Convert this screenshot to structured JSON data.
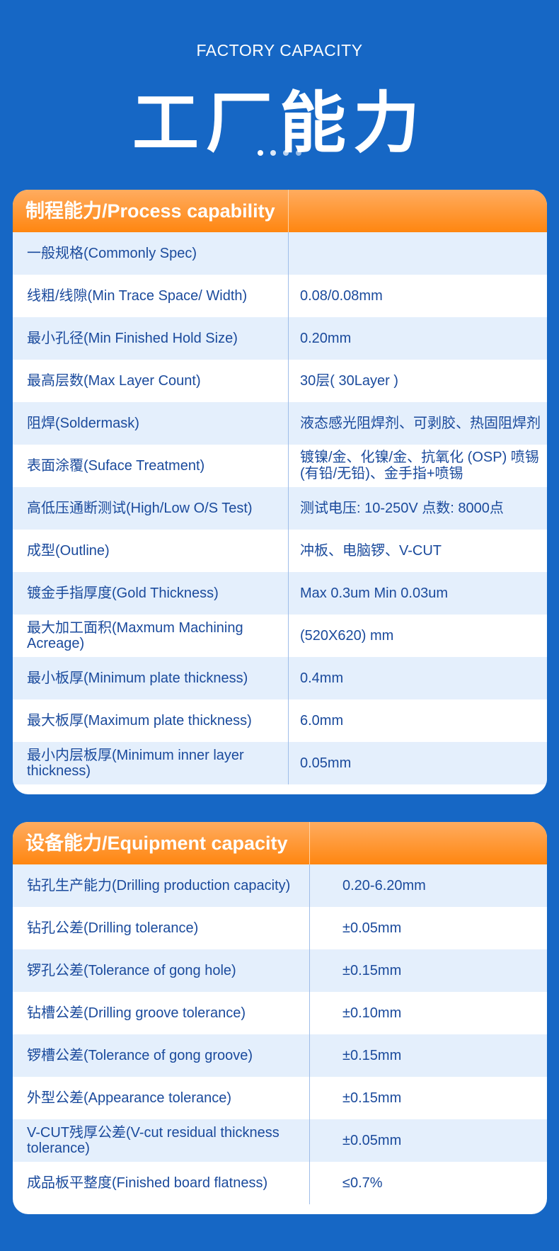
{
  "header": {
    "subtitle": "FACTORY CAPACITY",
    "title": "工厂能力"
  },
  "colors": {
    "background": "#1667c5",
    "header_orange": "#ff8610",
    "text": "#1a4a9c",
    "row_alt": "#e4effc"
  },
  "process": {
    "title": "制程能力/Process capability",
    "rows": [
      [
        "一般规格(Commonly Spec)",
        ""
      ],
      [
        "线粗/线隙(Min Trace Space/ Width)",
        "0.08/0.08mm"
      ],
      [
        "最小孔径(Min Finished Hold Size)",
        "0.20mm"
      ],
      [
        "最高层数(Max Layer Count)",
        "30层( 30Layer )"
      ],
      [
        "阻焊(Soldermask)",
        "液态感光阻焊剂、可剥胶、热固阻焊剂"
      ],
      [
        "表面涂覆(Suface Treatment)",
        "镀镍/金、化镍/金、抗氧化 (OSP) 喷锡(有铅/无铅)、金手指+喷锡"
      ],
      [
        "高低压通断测试(High/Low O/S Test)",
        "测试电压: 10-250V 点数: 8000点"
      ],
      [
        "成型(Outline)",
        "冲板、电脑锣、V-CUT"
      ],
      [
        "镀金手指厚度(Gold Thickness)",
        "Max 0.3um Min 0.03um"
      ],
      [
        "最大加工面积(Maxmum Machining Acreage)",
        "(520X620) mm"
      ],
      [
        "最小板厚(Minimum plate thickness)",
        "0.4mm"
      ],
      [
        "最大板厚(Maximum plate thickness)",
        "6.0mm"
      ],
      [
        "最小内层板厚(Minimum inner layer thickness)",
        "0.05mm"
      ]
    ]
  },
  "equipment": {
    "title": "设备能力/Equipment capacity",
    "rows": [
      [
        "钻孔生产能力(Drilling production capacity)",
        "0.20-6.20mm"
      ],
      [
        "钻孔公差(Drilling tolerance)",
        "±0.05mm"
      ],
      [
        "锣孔公差(Tolerance of gong hole)",
        "±0.15mm"
      ],
      [
        "钻槽公差(Drilling groove tolerance)",
        "±0.10mm"
      ],
      [
        "锣槽公差(Tolerance of gong groove)",
        "±0.15mm"
      ],
      [
        "外型公差(Appearance tolerance)",
        "±0.15mm"
      ],
      [
        "V-CUT残厚公差(V-cut residual thickness tolerance)",
        "±0.05mm"
      ],
      [
        "成品板平整度(Finished board flatness)",
        "≤0.7%"
      ]
    ]
  }
}
